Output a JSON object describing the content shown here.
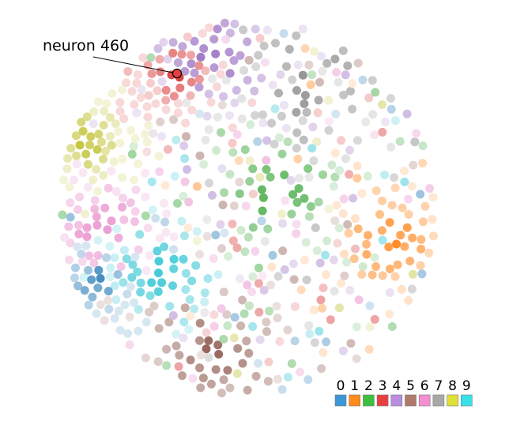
{
  "callout": {
    "label": "neuron 460",
    "neuron_id": 460,
    "digit": 3
  },
  "legend": {
    "digits": [
      "0",
      "1",
      "2",
      "3",
      "4",
      "5",
      "6",
      "7",
      "8",
      "9"
    ],
    "colors": [
      "#3b97d6",
      "#ff8c1a",
      "#3fbf3f",
      "#e84040",
      "#b98ee0",
      "#b07a6a",
      "#f28fcf",
      "#a8a8a8",
      "#e0e03a",
      "#38e0e8"
    ]
  },
  "clusters": [
    {
      "digit": 7,
      "color": "#7f7f7f"
    },
    {
      "digit": 4,
      "color": "#9467bd"
    },
    {
      "digit": 3,
      "color": "#d62728"
    },
    {
      "digit": 2,
      "color": "#2ca02c"
    },
    {
      "digit": 1,
      "color": "#ff7f0e"
    },
    {
      "digit": 9,
      "color": "#17becf"
    },
    {
      "digit": 5,
      "color": "#8c564b"
    },
    {
      "digit": 6,
      "color": "#e377c2"
    },
    {
      "digit": 8,
      "color": "#bcbd22"
    },
    {
      "digit": 0,
      "color": "#1f77b4"
    }
  ]
}
